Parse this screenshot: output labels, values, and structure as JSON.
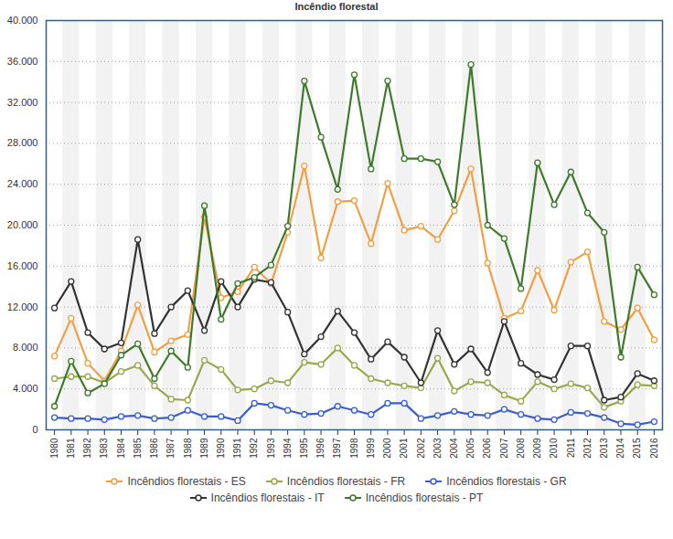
{
  "chart_data": {
    "type": "line",
    "title": "Incêndio florestal",
    "x": [
      1980,
      1981,
      1982,
      1983,
      1984,
      1985,
      1986,
      1987,
      1988,
      1989,
      1990,
      1991,
      1992,
      1993,
      1994,
      1995,
      1996,
      1997,
      1998,
      1999,
      2000,
      2001,
      2002,
      2003,
      2004,
      2005,
      2006,
      2007,
      2008,
      2009,
      2010,
      2011,
      2012,
      2013,
      2014,
      2015,
      2016
    ],
    "xlim": [
      1980,
      2016
    ],
    "xticks": [
      1980,
      1981,
      1982,
      1983,
      1984,
      1985,
      1986,
      1987,
      1988,
      1989,
      1990,
      1991,
      1992,
      1993,
      1994,
      1995,
      1996,
      1997,
      1998,
      1999,
      2000,
      2001,
      2002,
      2003,
      2004,
      2005,
      2006,
      2007,
      2008,
      2009,
      2010,
      2011,
      2012,
      2013,
      2014,
      2015,
      2016
    ],
    "ylim": [
      0,
      40000
    ],
    "yticks": [
      0,
      {
        "value": 4000,
        "label": "4.000"
      },
      {
        "value": 8000,
        "label": "8.000"
      },
      {
        "value": 12000,
        "label": "12.000"
      },
      {
        "value": 16000,
        "label": "16.000"
      },
      {
        "value": 20000,
        "label": "20.000"
      },
      {
        "value": 24000,
        "label": "24.000"
      },
      {
        "value": 28000,
        "label": "28.000"
      },
      {
        "value": 32000,
        "label": "32.000"
      },
      {
        "value": 36000,
        "label": "36.000"
      },
      {
        "value": 40000,
        "label": "40.000"
      }
    ],
    "grid": true,
    "marker": "circle",
    "legend": "bottom",
    "series": [
      {
        "name": "Incêndios florestais - ES",
        "color": "#f0a043",
        "values": [
          7200,
          10900,
          6500,
          4800,
          7700,
          12200,
          7600,
          8700,
          9300,
          20800,
          12900,
          13500,
          15900,
          14300,
          19300,
          25800,
          16800,
          22300,
          22400,
          18200,
          24100,
          19500,
          19900,
          18600,
          21400,
          25500,
          16300,
          10900,
          11600,
          15600,
          11700,
          16400,
          17400,
          10600,
          9800,
          11900,
          8800
        ]
      },
      {
        "name": "Incêndios florestais - FR",
        "color": "#98a84c",
        "values": [
          5000,
          5200,
          5200,
          4600,
          5700,
          6300,
          4300,
          3000,
          2900,
          6800,
          5900,
          3900,
          4000,
          4800,
          4600,
          6600,
          6400,
          8000,
          6300,
          5000,
          4600,
          4300,
          4100,
          7000,
          3800,
          4700,
          4600,
          3400,
          2800,
          4700,
          4000,
          4500,
          4100,
          2200,
          2800,
          4400,
          4300
        ]
      },
      {
        "name": "Incêndios florestais - GR",
        "color": "#3a5fcd",
        "values": [
          1200,
          1100,
          1100,
          1000,
          1300,
          1400,
          1100,
          1200,
          1900,
          1300,
          1300,
          900,
          2600,
          2400,
          1900,
          1500,
          1600,
          2300,
          1900,
          1500,
          2600,
          2600,
          1100,
          1400,
          1800,
          1500,
          1400,
          2000,
          1500,
          1100,
          1000,
          1700,
          1600,
          1200,
          600,
          500,
          800
        ]
      },
      {
        "name": "Incêndios florestais - IT",
        "color": "#333333",
        "values": [
          11900,
          14500,
          9500,
          7900,
          8500,
          18600,
          9400,
          12000,
          13600,
          9700,
          14500,
          12000,
          14700,
          14400,
          11500,
          7400,
          9100,
          11600,
          9500,
          6900,
          8600,
          7100,
          4600,
          9700,
          6400,
          7900,
          5600,
          10600,
          6500,
          5400,
          4900,
          8200,
          8200,
          2900,
          3200,
          5500,
          4800
        ]
      },
      {
        "name": "Incêndios florestais - PT",
        "color": "#3f7a2c",
        "values": [
          2300,
          6700,
          3600,
          4500,
          7300,
          8400,
          5000,
          7700,
          6100,
          21900,
          10800,
          14300,
          14900,
          16100,
          19900,
          34100,
          28600,
          23500,
          34700,
          25500,
          34100,
          26500,
          26500,
          26200,
          22000,
          35700,
          20000,
          18700,
          13800,
          26100,
          22000,
          25200,
          21200,
          19300,
          7100,
          15900,
          13200
        ]
      }
    ]
  }
}
